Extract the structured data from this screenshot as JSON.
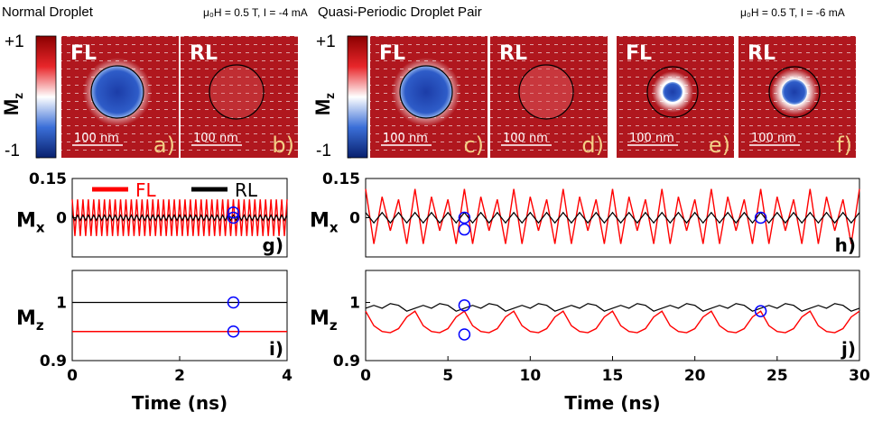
{
  "headers": {
    "left": "Normal Droplet",
    "left_field": "μ₀H = 0.5 T, I = -4 mA",
    "right": "Quasi-Periodic Droplet Pair",
    "right_field": "μ₀H = 0.5 T, I = -6 mA"
  },
  "colorbars": [
    {
      "label": "M",
      "label_sub": "z",
      "clim": [
        -1,
        1
      ],
      "ticks": [
        {
          "value": 1,
          "label": "+1"
        },
        -1
      ]
    },
    {
      "label": "M",
      "label_sub": "z",
      "clim": [
        -1,
        1
      ],
      "ticks": [
        {
          "value": 1,
          "label": "+1"
        },
        -1
      ]
    }
  ],
  "snapshots": [
    {
      "layer": "FL",
      "scale": "100 nm",
      "tag": "a)"
    },
    {
      "layer": "RL",
      "scale": "100 nm",
      "tag": "b)"
    },
    {
      "layer": "FL",
      "scale": "100 nm",
      "tag": "c)"
    },
    {
      "layer": "RL",
      "scale": "100 nm",
      "tag": "d)"
    },
    {
      "layer": "FL",
      "scale": "100 nm",
      "tag": "e)"
    },
    {
      "layer": "RL",
      "scale": "100 nm",
      "tag": "f)"
    }
  ],
  "chart_data": [
    {
      "type": "line",
      "panel": "g)",
      "ylabel": "M",
      "ylabel_sub": "x",
      "legend": "top",
      "xlim": [
        0,
        4
      ],
      "ylim": [
        -0.15,
        0.15
      ],
      "yticks": [
        0,
        0.15
      ],
      "x": [
        0,
        0.05,
        0.1,
        0.15,
        0.2,
        0.25,
        0.3,
        0.35,
        0.4,
        0.45,
        0.5,
        0.55,
        0.6,
        0.65,
        0.7,
        0.75,
        0.8,
        0.85,
        0.9,
        0.95,
        1,
        1.05,
        1.1,
        1.15,
        1.2,
        1.25,
        1.3,
        1.35,
        1.4,
        1.45,
        1.5,
        1.55,
        1.6,
        1.65,
        1.7,
        1.75,
        1.8,
        1.85,
        1.9,
        1.95,
        2,
        2.05,
        2.1,
        2.15,
        2.2,
        2.25,
        2.3,
        2.35,
        2.4,
        2.45,
        2.5,
        2.55,
        2.6,
        2.65,
        2.7,
        2.75,
        2.8,
        2.85,
        2.9,
        2.95,
        3,
        3.05,
        3.1,
        3.15,
        3.2,
        3.25,
        3.3,
        3.35,
        3.4,
        3.45,
        3.5,
        3.55,
        3.6,
        3.65,
        3.7,
        3.75,
        3.8,
        3.85,
        3.9,
        3.95,
        4
      ],
      "series": [
        {
          "name": "FL",
          "color": "#ff0000",
          "values": [
            0.07,
            -0.07,
            0.07,
            -0.07,
            0.07,
            -0.07,
            0.07,
            -0.07,
            0.07,
            -0.07,
            0.07,
            -0.07,
            0.07,
            -0.07,
            0.07,
            -0.07,
            0.07,
            -0.07,
            0.07,
            -0.07,
            0.07,
            -0.07,
            0.07,
            -0.07,
            0.07,
            -0.07,
            0.07,
            -0.07,
            0.07,
            -0.07,
            0.07,
            -0.07,
            0.07,
            -0.07,
            0.07,
            -0.07,
            0.07,
            -0.07,
            0.07,
            -0.07,
            0.07,
            -0.07,
            0.07,
            -0.07,
            0.07,
            -0.07,
            0.07,
            -0.07,
            0.07,
            -0.07,
            0.07,
            -0.07,
            0.07,
            -0.07,
            0.07,
            -0.07,
            0.07,
            -0.07,
            0.07,
            -0.07,
            0.07,
            -0.07,
            0.07,
            -0.07,
            0.07,
            -0.07,
            0.07,
            -0.07,
            0.07,
            -0.07,
            0.07,
            -0.07,
            0.07,
            -0.07,
            0.07,
            -0.07,
            0.07,
            -0.07,
            0.07,
            -0.07,
            0.07
          ]
        },
        {
          "name": "RL",
          "color": "#000000",
          "values": [
            0.01,
            -0.01,
            0.01,
            -0.01,
            0.01,
            -0.01,
            0.01,
            -0.01,
            0.01,
            -0.01,
            0.01,
            -0.01,
            0.01,
            -0.01,
            0.01,
            -0.01,
            0.01,
            -0.01,
            0.01,
            -0.01,
            0.01,
            -0.01,
            0.01,
            -0.01,
            0.01,
            -0.01,
            0.01,
            -0.01,
            0.01,
            -0.01,
            0.01,
            -0.01,
            0.01,
            -0.01,
            0.01,
            -0.01,
            0.01,
            -0.01,
            0.01,
            -0.01,
            0.01,
            -0.01,
            0.01,
            -0.01,
            0.01,
            -0.01,
            0.01,
            -0.01,
            0.01,
            -0.01,
            0.01,
            -0.01,
            0.01,
            -0.01,
            0.01,
            -0.01,
            0.01,
            -0.01,
            0.01,
            -0.01,
            0.01,
            -0.01,
            0.01,
            -0.01,
            0.01,
            -0.01,
            0.01,
            -0.01,
            0.01,
            -0.01,
            0.01,
            -0.01,
            0.01,
            -0.01,
            0.01,
            -0.01,
            0.01,
            -0.01,
            0.01,
            -0.01,
            0.01
          ]
        }
      ],
      "markers": {
        "color": "#0000ff",
        "x": [
          3,
          3
        ],
        "values": [
          0.02,
          0
        ]
      }
    },
    {
      "type": "line",
      "panel": "h)",
      "ylabel": "M",
      "ylabel_sub": "x",
      "xlim": [
        0,
        30
      ],
      "ylim": [
        -0.15,
        0.15
      ],
      "yticks": [
        0,
        0.15
      ],
      "x": [
        0,
        0.5,
        1,
        1.5,
        2,
        2.5,
        3,
        3.5,
        4,
        4.5,
        5,
        5.5,
        6,
        6.5,
        7,
        7.5,
        8,
        8.5,
        9,
        9.5,
        10,
        10.5,
        11,
        11.5,
        12,
        12.5,
        13,
        13.5,
        14,
        14.5,
        15,
        15.5,
        16,
        16.5,
        17,
        17.5,
        18,
        18.5,
        19,
        19.5,
        20,
        20.5,
        21,
        21.5,
        22,
        22.5,
        23,
        23.5,
        24,
        24.5,
        25,
        25.5,
        26,
        26.5,
        27,
        27.5,
        28,
        28.5,
        29,
        29.5,
        30
      ],
      "series": [
        {
          "name": "FL",
          "color": "#ff0000",
          "values": [
            0.11,
            -0.1,
            0.08,
            -0.05,
            0.07,
            -0.1,
            0.11,
            -0.1,
            0.08,
            -0.05,
            0.07,
            -0.1,
            0.11,
            -0.1,
            0.08,
            -0.05,
            0.07,
            -0.1,
            0.11,
            -0.1,
            0.08,
            -0.05,
            0.07,
            -0.1,
            0.11,
            -0.1,
            0.08,
            -0.05,
            0.07,
            -0.1,
            0.11,
            -0.1,
            0.08,
            -0.05,
            0.07,
            -0.1,
            0.11,
            -0.1,
            0.08,
            -0.05,
            0.07,
            -0.1,
            0.11,
            -0.1,
            0.08,
            -0.05,
            0.07,
            -0.1,
            0.11,
            -0.1,
            0.08,
            -0.05,
            0.07,
            -0.1,
            0.11,
            -0.1,
            0.08,
            -0.05,
            0.07,
            -0.1,
            0.11
          ]
        },
        {
          "name": "RL",
          "color": "#000000",
          "values": [
            0.02,
            -0.02,
            0.02,
            -0.02,
            0.02,
            -0.02,
            0.02,
            -0.02,
            0.02,
            -0.02,
            0.02,
            -0.02,
            0.02,
            -0.02,
            0.02,
            -0.02,
            0.02,
            -0.02,
            0.02,
            -0.02,
            0.02,
            -0.02,
            0.02,
            -0.02,
            0.02,
            -0.02,
            0.02,
            -0.02,
            0.02,
            -0.02,
            0.02,
            -0.02,
            0.02,
            -0.02,
            0.02,
            -0.02,
            0.02,
            -0.02,
            0.02,
            -0.02,
            0.02,
            -0.02,
            0.02,
            -0.02,
            0.02,
            -0.02,
            0.02,
            -0.02,
            0.02,
            -0.02,
            0.02,
            -0.02,
            0.02,
            -0.02,
            0.02,
            -0.02,
            0.02,
            -0.02,
            0.02,
            -0.02,
            0.02
          ]
        }
      ],
      "markers": {
        "color": "#0000ff",
        "x": [
          6,
          6,
          24
        ],
        "values": [
          0,
          -0.045,
          0
        ]
      }
    },
    {
      "type": "line",
      "panel": "i)",
      "ylabel": "M",
      "ylabel_sub": "z",
      "xlabel": "Time (ns)",
      "xlim": [
        0,
        4
      ],
      "xticks": [
        0,
        2,
        4
      ],
      "ylim": [
        0.9,
        1.055
      ],
      "yticks": [
        0.9,
        1
      ],
      "x": [
        0,
        4
      ],
      "series": [
        {
          "name": "FL",
          "color": "#ff0000",
          "values": [
            0.95,
            0.95
          ]
        },
        {
          "name": "RL",
          "color": "#000000",
          "values": [
            1,
            1
          ]
        }
      ],
      "markers": {
        "color": "#0000ff",
        "x": [
          3,
          3
        ],
        "values": [
          1,
          0.95
        ]
      }
    },
    {
      "type": "line",
      "panel": "j)",
      "ylabel": "M",
      "ylabel_sub": "z",
      "xlabel": "Time (ns)",
      "xlim": [
        0,
        30
      ],
      "xticks": [
        0,
        5,
        10,
        15,
        20,
        25,
        30
      ],
      "ylim": [
        0.9,
        1.055
      ],
      "yticks": [
        0.9,
        1
      ],
      "x": [
        0,
        0.5,
        1,
        1.5,
        2,
        2.5,
        3,
        3.5,
        4,
        4.5,
        5,
        5.5,
        6,
        6.5,
        7,
        7.5,
        8,
        8.5,
        9,
        9.5,
        10,
        10.5,
        11,
        11.5,
        12,
        12.5,
        13,
        13.5,
        14,
        14.5,
        15,
        15.5,
        16,
        16.5,
        17,
        17.5,
        18,
        18.5,
        19,
        19.5,
        20,
        20.5,
        21,
        21.5,
        22,
        22.5,
        23,
        23.5,
        24,
        24.5,
        25,
        25.5,
        26,
        26.5,
        27,
        27.5,
        28,
        28.5,
        29,
        29.5,
        30
      ],
      "series": [
        {
          "name": "FL",
          "color": "#ff0000",
          "values": [
            0.985,
            0.96,
            0.95,
            0.948,
            0.955,
            0.975,
            0.985,
            0.96,
            0.95,
            0.948,
            0.955,
            0.975,
            0.985,
            0.96,
            0.95,
            0.948,
            0.955,
            0.975,
            0.985,
            0.96,
            0.95,
            0.948,
            0.955,
            0.975,
            0.985,
            0.96,
            0.95,
            0.948,
            0.955,
            0.975,
            0.985,
            0.96,
            0.95,
            0.948,
            0.955,
            0.975,
            0.985,
            0.96,
            0.95,
            0.948,
            0.955,
            0.975,
            0.985,
            0.96,
            0.95,
            0.948,
            0.955,
            0.975,
            0.985,
            0.96,
            0.95,
            0.948,
            0.955,
            0.975,
            0.985,
            0.96,
            0.95,
            0.948,
            0.955,
            0.975,
            0.985
          ]
        },
        {
          "name": "RL",
          "color": "#000000",
          "values": [
            0.99,
            0.995,
            0.99,
            0.998,
            0.995,
            0.985,
            0.99,
            0.995,
            0.99,
            0.998,
            0.995,
            0.985,
            0.99,
            0.995,
            0.99,
            0.998,
            0.995,
            0.985,
            0.99,
            0.995,
            0.99,
            0.998,
            0.995,
            0.985,
            0.99,
            0.995,
            0.99,
            0.998,
            0.995,
            0.985,
            0.99,
            0.995,
            0.99,
            0.998,
            0.995,
            0.985,
            0.99,
            0.995,
            0.99,
            0.998,
            0.995,
            0.985,
            0.99,
            0.995,
            0.99,
            0.998,
            0.995,
            0.985,
            0.99,
            0.995,
            0.99,
            0.998,
            0.995,
            0.985,
            0.99,
            0.995,
            0.99,
            0.998,
            0.995,
            0.985,
            0.99
          ]
        }
      ],
      "markers": {
        "color": "#0000ff",
        "x": [
          6,
          6,
          24
        ],
        "values": [
          0.995,
          0.945,
          0.985
        ]
      }
    }
  ]
}
